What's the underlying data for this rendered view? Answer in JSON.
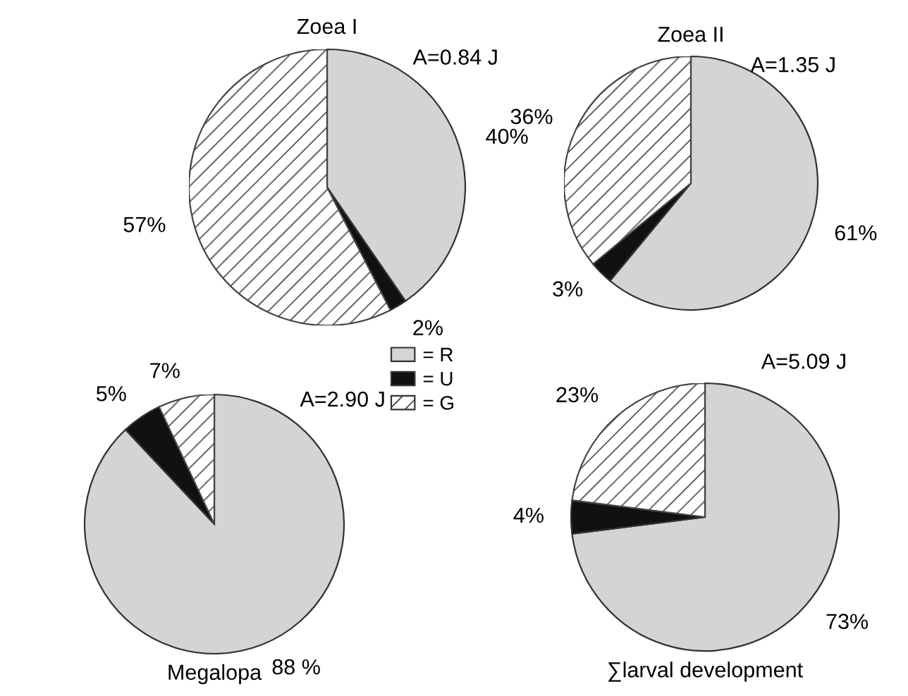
{
  "chart_data": [
    {
      "type": "pie",
      "title": "Zoea I",
      "categories": [
        "= R",
        "= U",
        "= G"
      ],
      "values": [
        40,
        2,
        57
      ],
      "value_labels": [
        "40%",
        "2%",
        "57%"
      ],
      "colors": [
        "#d4d4d4",
        "#111111",
        "#ffffff"
      ],
      "annotations": [
        "A=0.84 J"
      ],
      "legend": "bottom right"
    },
    {
      "type": "pie",
      "title": "Zoea II",
      "values": [
        61,
        3,
        36
      ],
      "value_labels": [
        "61%",
        "3%",
        "36%"
      ],
      "colors": [
        "#d4d4d4",
        "#111111",
        "#ffffff"
      ],
      "annotations": [
        "A=1.35 J"
      ]
    },
    {
      "type": "pie",
      "title": "Megalopa",
      "values": [
        88,
        5,
        7
      ],
      "value_labels": [
        "88 %",
        "5%",
        "7%"
      ],
      "colors": [
        "#d4d4d4",
        "#111111",
        "#ffffff"
      ],
      "annotations": [
        "A=2.90 J"
      ]
    },
    {
      "type": "pie",
      "title": "∑larval development",
      "values": [
        73,
        4,
        23
      ],
      "value_labels": [
        "73%",
        "4%",
        "23%"
      ],
      "colors": [
        "#d4d4d4",
        "#111111",
        "#ffffff"
      ],
      "annotations": [
        "A=5.09 J"
      ]
    }
  ]
}
